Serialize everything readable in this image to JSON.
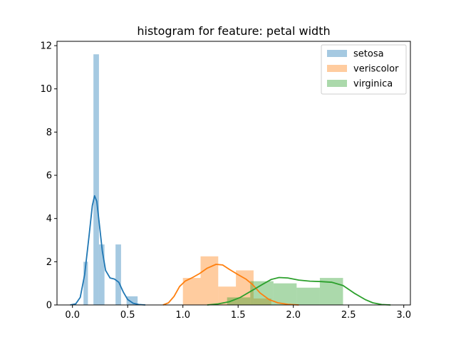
{
  "chart_data": {
    "type": "bar",
    "title": "histogram for feature: petal width",
    "xlabel": "",
    "ylabel": "",
    "xlim": [
      -0.14,
      3.06
    ],
    "ylim": [
      0,
      12.2
    ],
    "xticks": [
      0.0,
      0.5,
      1.0,
      1.5,
      2.0,
      2.5,
      3.0
    ],
    "xtick_labels": [
      "0.0",
      "0.5",
      "1.0",
      "1.5",
      "2.0",
      "2.5",
      "3.0"
    ],
    "yticks": [
      0,
      2,
      4,
      6,
      8,
      10,
      12
    ],
    "ytick_labels": [
      "0",
      "2",
      "4",
      "6",
      "8",
      "10",
      "12"
    ],
    "legend_position": "top-right",
    "grid": false,
    "series": [
      {
        "name": "setosa",
        "color": "#1f77b4",
        "alpha": 0.4,
        "bins": [
          {
            "x0": 0.1,
            "x1": 0.14,
            "height": 2.0
          },
          {
            "x0": 0.19,
            "x1": 0.24,
            "height": 11.6
          },
          {
            "x0": 0.24,
            "x1": 0.29,
            "height": 2.8
          },
          {
            "x0": 0.39,
            "x1": 0.44,
            "height": 2.8
          },
          {
            "x0": 0.49,
            "x1": 0.59,
            "height": 0.4
          }
        ],
        "kde": [
          [
            -0.02,
            0.0
          ],
          [
            0.03,
            0.05
          ],
          [
            0.07,
            0.35
          ],
          [
            0.11,
            1.4
          ],
          [
            0.15,
            3.2
          ],
          [
            0.18,
            4.6
          ],
          [
            0.2,
            5.05
          ],
          [
            0.22,
            4.8
          ],
          [
            0.24,
            3.9
          ],
          [
            0.27,
            2.5
          ],
          [
            0.3,
            1.6
          ],
          [
            0.34,
            1.25
          ],
          [
            0.38,
            1.2
          ],
          [
            0.42,
            1.05
          ],
          [
            0.46,
            0.6
          ],
          [
            0.5,
            0.25
          ],
          [
            0.55,
            0.08
          ],
          [
            0.6,
            0.02
          ],
          [
            0.66,
            0.0
          ]
        ]
      },
      {
        "name": "veriscolor",
        "color": "#ff7f0e",
        "alpha": 0.4,
        "bins": [
          {
            "x0": 1.0,
            "x1": 1.16,
            "height": 1.25
          },
          {
            "x0": 1.16,
            "x1": 1.32,
            "height": 2.25
          },
          {
            "x0": 1.32,
            "x1": 1.48,
            "height": 0.85
          },
          {
            "x0": 1.48,
            "x1": 1.64,
            "height": 1.6
          },
          {
            "x0": 1.64,
            "x1": 1.8,
            "height": 0.3
          }
        ],
        "kde": [
          [
            0.82,
            0.0
          ],
          [
            0.87,
            0.1
          ],
          [
            0.92,
            0.4
          ],
          [
            0.97,
            0.85
          ],
          [
            1.02,
            1.1
          ],
          [
            1.08,
            1.25
          ],
          [
            1.15,
            1.45
          ],
          [
            1.22,
            1.7
          ],
          [
            1.3,
            1.88
          ],
          [
            1.36,
            1.85
          ],
          [
            1.42,
            1.65
          ],
          [
            1.5,
            1.4
          ],
          [
            1.57,
            1.2
          ],
          [
            1.63,
            0.95
          ],
          [
            1.7,
            0.55
          ],
          [
            1.78,
            0.25
          ],
          [
            1.86,
            0.1
          ],
          [
            1.95,
            0.03
          ],
          [
            2.05,
            0.0
          ]
        ]
      },
      {
        "name": "virginica",
        "color": "#2ca02c",
        "alpha": 0.4,
        "bins": [
          {
            "x0": 1.4,
            "x1": 1.61,
            "height": 0.35
          },
          {
            "x0": 1.61,
            "x1": 1.82,
            "height": 1.1
          },
          {
            "x0": 1.82,
            "x1": 2.03,
            "height": 1.0
          },
          {
            "x0": 2.03,
            "x1": 2.24,
            "height": 0.8
          },
          {
            "x0": 2.24,
            "x1": 2.45,
            "height": 1.25
          }
        ],
        "kde": [
          [
            1.22,
            0.0
          ],
          [
            1.32,
            0.05
          ],
          [
            1.42,
            0.15
          ],
          [
            1.52,
            0.35
          ],
          [
            1.62,
            0.65
          ],
          [
            1.72,
            0.95
          ],
          [
            1.8,
            1.18
          ],
          [
            1.87,
            1.27
          ],
          [
            1.95,
            1.25
          ],
          [
            2.05,
            1.15
          ],
          [
            2.15,
            1.1
          ],
          [
            2.25,
            1.08
          ],
          [
            2.35,
            1.05
          ],
          [
            2.45,
            0.9
          ],
          [
            2.55,
            0.55
          ],
          [
            2.65,
            0.25
          ],
          [
            2.72,
            0.1
          ],
          [
            2.8,
            0.02
          ],
          [
            2.88,
            0.0
          ]
        ]
      }
    ]
  }
}
